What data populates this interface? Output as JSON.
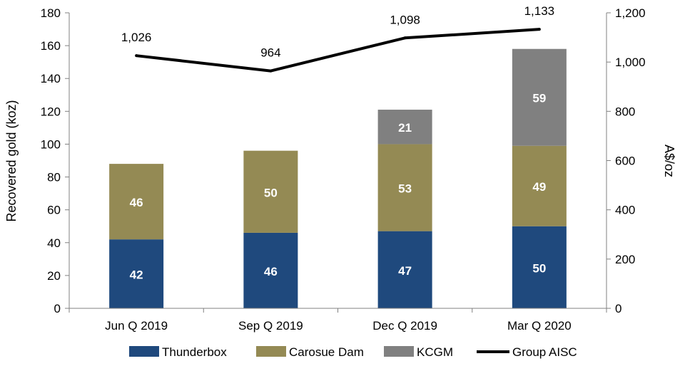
{
  "chart_data": {
    "type": "bar",
    "stacked": true,
    "categories": [
      "Jun Q 2019",
      "Sep Q 2019",
      "Dec Q 2019",
      "Mar Q 2020"
    ],
    "series": [
      {
        "name": "Thunderbox",
        "axis": "left",
        "color": "#1f497d",
        "values": [
          42,
          46,
          47,
          50
        ]
      },
      {
        "name": "Carosue Dam",
        "axis": "left",
        "color": "#948a54",
        "values": [
          46,
          50,
          53,
          49
        ]
      },
      {
        "name": "KCGM",
        "axis": "left",
        "color": "#808080",
        "values": [
          null,
          null,
          21,
          59
        ]
      },
      {
        "name": "Group AISC",
        "type": "line",
        "axis": "right",
        "color": "#000000",
        "values": [
          1026,
          964,
          1098,
          1133
        ],
        "labels": [
          "1,026",
          "964",
          "1,098",
          "1,133"
        ]
      }
    ],
    "ylabel": "Recovered gold (koz)",
    "y2label": "A$/oz",
    "ylim": [
      0,
      180
    ],
    "y2lim": [
      0,
      1200
    ],
    "yticks": [
      "0",
      "20",
      "40",
      "60",
      "80",
      "100",
      "120",
      "140",
      "160",
      "180"
    ],
    "y2ticks": [
      "0",
      "200",
      "400",
      "600",
      "800",
      "1,000",
      "1,200"
    ],
    "legend_position": "bottom",
    "grid": false
  }
}
